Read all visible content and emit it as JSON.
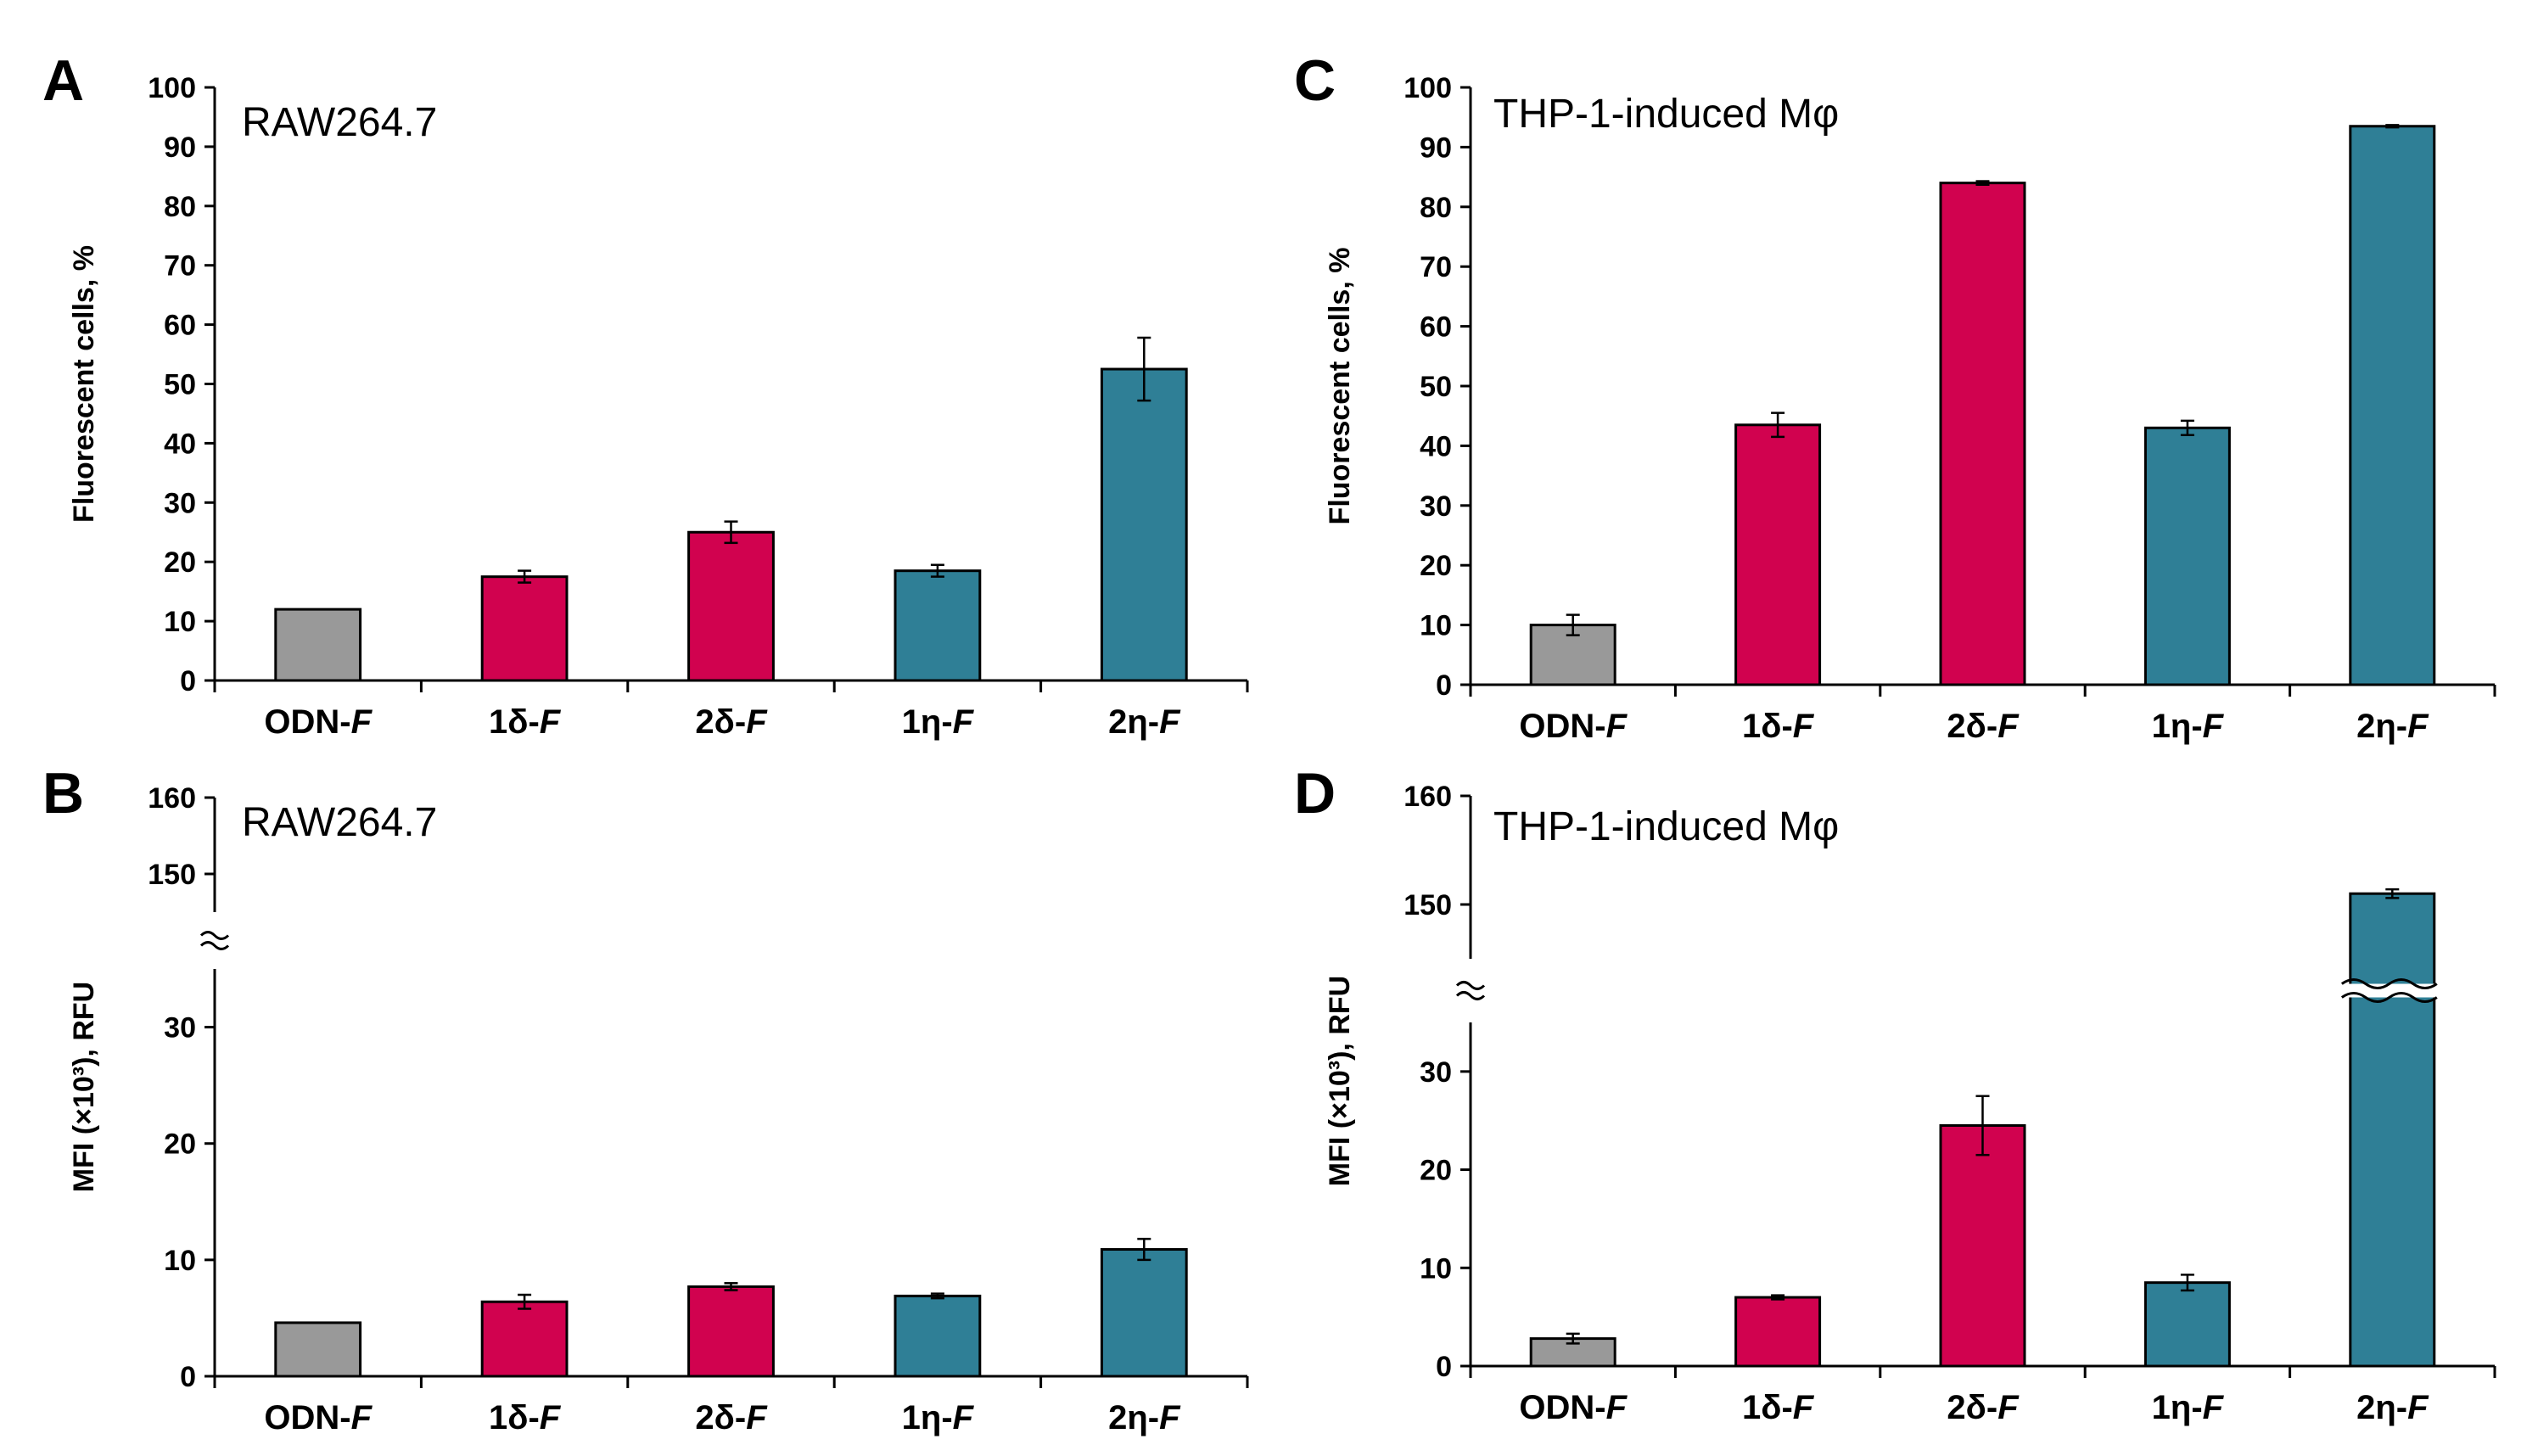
{
  "chart_data": [
    {
      "id": "A",
      "type": "bar",
      "panel_label": "A",
      "title": "RAW264.7",
      "ylabel": "Fluorescent cells, %",
      "ylim": [
        0,
        100
      ],
      "yticks": [
        "0",
        "10",
        "20",
        "30",
        "40",
        "50",
        "60",
        "70",
        "80",
        "90",
        "100"
      ],
      "categories": [
        {
          "main": "ODN-",
          "ital": "F"
        },
        {
          "main": "1δ-",
          "ital": "F"
        },
        {
          "main": "2δ-",
          "ital": "F"
        },
        {
          "main": "1η-",
          "ital": "F"
        },
        {
          "main": "2η-",
          "ital": "F"
        }
      ],
      "values": [
        12,
        17.5,
        25,
        18.5,
        52.5
      ],
      "errors": [
        0,
        1,
        1.8,
        1,
        5.3
      ],
      "colors": [
        "#999999",
        "#d1024f",
        "#d1024f",
        "#2f7f96",
        "#2f7f96"
      ]
    },
    {
      "id": "B",
      "type": "bar",
      "panel_label": "B",
      "title": "RAW264.7",
      "ylabel": "MFI (×10³), RFU",
      "ylim": [
        0,
        160
      ],
      "axis_break": [
        35,
        145
      ],
      "yticks": [
        "0",
        "10",
        "20",
        "30",
        "150",
        "160"
      ],
      "categories": [
        {
          "main": "ODN-",
          "ital": "F"
        },
        {
          "main": "1δ-",
          "ital": "F"
        },
        {
          "main": "2δ-",
          "ital": "F"
        },
        {
          "main": "1η-",
          "ital": "F"
        },
        {
          "main": "2η-",
          "ital": "F"
        }
      ],
      "values": [
        4.6,
        6.4,
        7.7,
        6.9,
        10.9
      ],
      "errors": [
        0,
        0.6,
        0.3,
        0.2,
        0.9
      ],
      "colors": [
        "#999999",
        "#d1024f",
        "#d1024f",
        "#2f7f96",
        "#2f7f96"
      ]
    },
    {
      "id": "C",
      "type": "bar",
      "panel_label": "C",
      "title": "THP-1-induced Mφ",
      "ylabel": "Fluorescent cells, %",
      "ylim": [
        0,
        100
      ],
      "yticks": [
        "0",
        "10",
        "20",
        "30",
        "40",
        "50",
        "60",
        "70",
        "80",
        "90",
        "100"
      ],
      "categories": [
        {
          "main": "ODN-",
          "ital": "F"
        },
        {
          "main": "1δ-",
          "ital": "F"
        },
        {
          "main": "2δ-",
          "ital": "F"
        },
        {
          "main": "1η-",
          "ital": "F"
        },
        {
          "main": "2η-",
          "ital": "F"
        }
      ],
      "values": [
        10,
        43.5,
        84,
        43,
        93.5
      ],
      "errors": [
        1.7,
        2,
        0.3,
        1.2,
        0.2
      ],
      "colors": [
        "#999999",
        "#d1024f",
        "#d1024f",
        "#2f7f96",
        "#2f7f96"
      ]
    },
    {
      "id": "D",
      "type": "bar",
      "panel_label": "D",
      "title": "THP-1-induced Mφ",
      "ylabel": "MFI (×10³), RFU",
      "ylim": [
        0,
        160
      ],
      "axis_break": [
        35,
        145
      ],
      "yticks": [
        "0",
        "10",
        "20",
        "30",
        "150",
        "160"
      ],
      "categories": [
        {
          "main": "ODN-",
          "ital": "F"
        },
        {
          "main": "1δ-",
          "ital": "F"
        },
        {
          "main": "2δ-",
          "ital": "F"
        },
        {
          "main": "1η-",
          "ital": "F"
        },
        {
          "main": "2η-",
          "ital": "F"
        }
      ],
      "values": [
        2.8,
        7,
        24.5,
        8.5,
        151
      ],
      "errors": [
        0.5,
        0.2,
        3,
        0.8,
        0.4
      ],
      "colors": [
        "#999999",
        "#d1024f",
        "#d1024f",
        "#2f7f96",
        "#2f7f96"
      ]
    }
  ]
}
